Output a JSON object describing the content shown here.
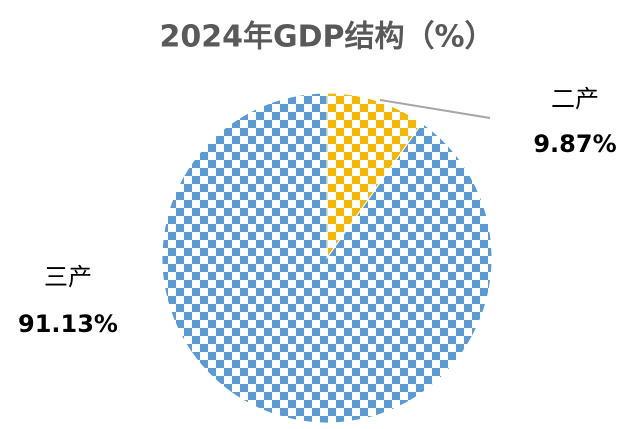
{
  "chart_data": {
    "type": "pie",
    "title": "2024年GDP结构（%）",
    "categories": [
      "二产",
      "三产"
    ],
    "values": [
      9.87,
      91.13
    ],
    "value_labels": [
      "9.87%",
      "91.13%"
    ],
    "colors": [
      "#f5b800",
      "#5b9bd5"
    ]
  }
}
